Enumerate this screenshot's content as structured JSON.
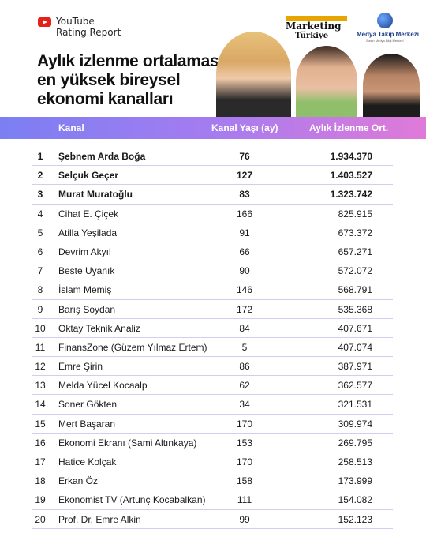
{
  "brand": {
    "line1": "YouTube",
    "line2": "Rating Report"
  },
  "headline": "Aylık izlenme ortalaması en yüksek bireysel ekonomi kanalları",
  "logos": {
    "marketing_line1": "Marketing",
    "marketing_line2": "Türkiye",
    "mtm_name": "Medya Takip Merkezi",
    "mtm_sub": "Basın Medya Bilgi Merkezi"
  },
  "columns": {
    "name": "Kanal",
    "age": "Kanal Yaşı (ay)",
    "avg": "Aylık İzlenme Ort."
  },
  "rows": [
    {
      "rank": "1",
      "name": "Şebnem Arda Boğa",
      "age": "76",
      "avg": "1.934.370"
    },
    {
      "rank": "2",
      "name": "Selçuk Geçer",
      "age": "127",
      "avg": "1.403.527"
    },
    {
      "rank": "3",
      "name": "Murat Muratoğlu",
      "age": "83",
      "avg": "1.323.742"
    },
    {
      "rank": "4",
      "name": "Cihat E. Çiçek",
      "age": "166",
      "avg": "825.915"
    },
    {
      "rank": "5",
      "name": "Atilla Yeşilada",
      "age": "91",
      "avg": "673.372"
    },
    {
      "rank": "6",
      "name": "Devrim Akyıl",
      "age": "66",
      "avg": "657.271"
    },
    {
      "rank": "7",
      "name": "Beste Uyanık",
      "age": "90",
      "avg": "572.072"
    },
    {
      "rank": "8",
      "name": "İslam Memiş",
      "age": "146",
      "avg": "568.791"
    },
    {
      "rank": "9",
      "name": "Barış Soydan",
      "age": "172",
      "avg": "535.368"
    },
    {
      "rank": "10",
      "name": "Oktay Teknik Analiz",
      "age": "84",
      "avg": "407.671"
    },
    {
      "rank": "11",
      "name": "FinansZone (Güzem Yılmaz Ertem)",
      "age": "5",
      "avg": "407.074"
    },
    {
      "rank": "12",
      "name": "Emre Şirin",
      "age": "86",
      "avg": "387.971"
    },
    {
      "rank": "13",
      "name": "Melda Yücel Kocaalp",
      "age": "62",
      "avg": "362.577"
    },
    {
      "rank": "14",
      "name": "Soner Gökten",
      "age": "34",
      "avg": "321.531"
    },
    {
      "rank": "15",
      "name": "Mert Başaran",
      "age": "170",
      "avg": "309.974"
    },
    {
      "rank": "16",
      "name": "Ekonomi Ekranı (Sami Altınkaya)",
      "age": "153",
      "avg": "269.795"
    },
    {
      "rank": "17",
      "name": "Hatice Kolçak",
      "age": "170",
      "avg": "258.513"
    },
    {
      "rank": "18",
      "name": "Erkan Öz",
      "age": "158",
      "avg": "173.999"
    },
    {
      "rank": "19",
      "name": "Ekonomist TV (Artunç Kocabalkan)",
      "age": "111",
      "avg": "154.082"
    },
    {
      "rank": "20",
      "name": "Prof. Dr. Emre Alkin",
      "age": "99",
      "avg": "152.123"
    }
  ],
  "colors": {
    "header_start": "#7b7ff2",
    "header_end": "#e07ad8",
    "row_divider": "#d3cdee",
    "youtube_red": "#e62117"
  },
  "icons": {
    "youtube": "youtube-play-icon"
  }
}
